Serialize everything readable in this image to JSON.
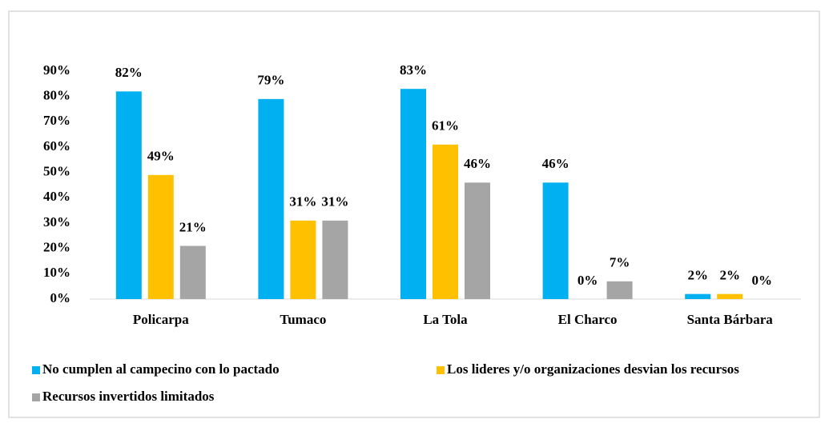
{
  "chart_data": {
    "type": "bar",
    "categories": [
      "Policarpa",
      "Tumaco",
      "La Tola",
      "El Charco",
      "Santa Bárbara"
    ],
    "series": [
      {
        "name": "No cumplen al campecino con lo pactado",
        "color": "#00b0f0",
        "values": [
          82,
          79,
          83,
          46,
          2
        ],
        "value_labels": [
          "82%",
          "79%",
          "83%",
          "46%",
          "2%"
        ]
      },
      {
        "name": "Los lideres y/o organizaciones desvian los recursos",
        "color": "#ffc000",
        "values": [
          49,
          31,
          61,
          0,
          2
        ],
        "value_labels": [
          "49%",
          "31%",
          "61%",
          "0%",
          "2%"
        ]
      },
      {
        "name": "Recursos invertidos limitados",
        "color": "#a5a5a5",
        "values": [
          21,
          31,
          46,
          7,
          0
        ],
        "value_labels": [
          "21%",
          "31%",
          "46%",
          "7%",
          "0%"
        ]
      }
    ],
    "ylim": [
      0,
      90
    ],
    "yticks": [
      {
        "value": 0,
        "label": "0%"
      },
      {
        "value": 10,
        "label": "10%"
      },
      {
        "value": 20,
        "label": "20%"
      },
      {
        "value": 30,
        "label": "30%"
      },
      {
        "value": 40,
        "label": "40%"
      },
      {
        "value": 50,
        "label": "50%"
      },
      {
        "value": 60,
        "label": "60%"
      },
      {
        "value": 70,
        "label": "70%"
      },
      {
        "value": 80,
        "label": "80%"
      },
      {
        "value": 90,
        "label": "90%"
      }
    ],
    "grid": false,
    "legend": "bottom"
  }
}
